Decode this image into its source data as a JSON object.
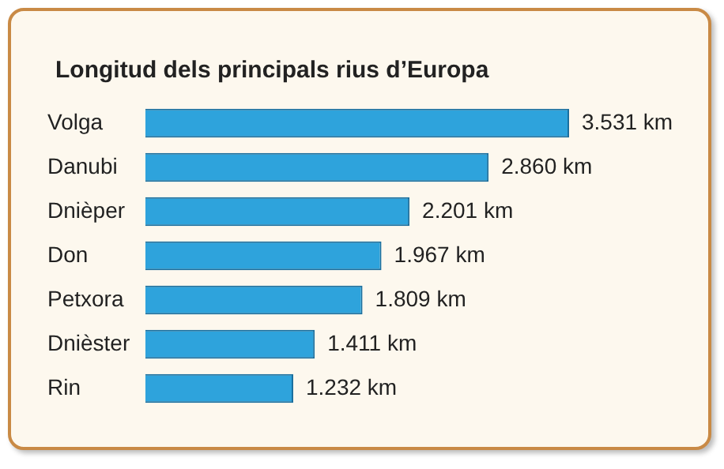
{
  "chart_data": {
    "type": "bar",
    "orientation": "horizontal",
    "title": "Longitud dels principals rius d’Europa",
    "categories": [
      "Volga",
      "Danubi",
      "Dnièper",
      "Don",
      "Petxora",
      "Dnièster",
      "Rin"
    ],
    "values": [
      3531,
      2860,
      2201,
      1967,
      1809,
      1411,
      1232
    ],
    "value_labels": [
      "3.531 km",
      "2.860 km",
      "2.201 km",
      "1.967 km",
      "1.809 km",
      "1.411 km",
      "1.232 km"
    ],
    "color": "#2ea3dc",
    "grid": false,
    "legend": false
  }
}
